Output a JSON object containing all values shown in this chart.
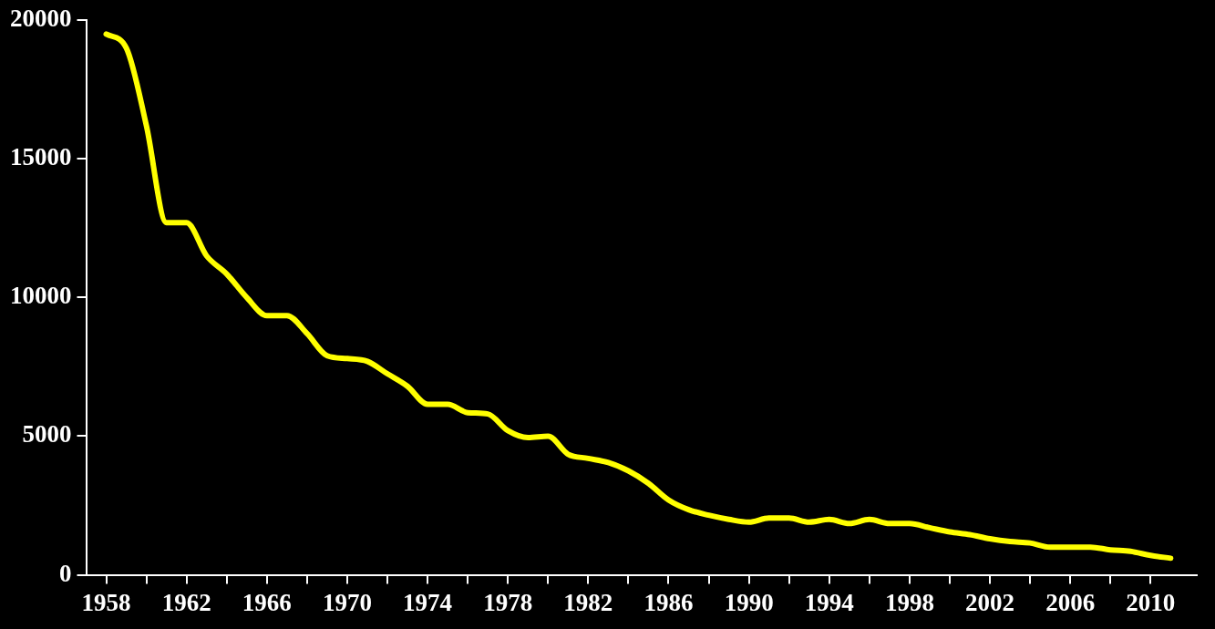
{
  "chart_data": {
    "type": "line",
    "x": [
      1958,
      1959,
      1960,
      1961,
      1962,
      1963,
      1964,
      1965,
      1966,
      1967,
      1968,
      1969,
      1970,
      1971,
      1972,
      1973,
      1974,
      1975,
      1976,
      1977,
      1978,
      1979,
      1980,
      1981,
      1982,
      1983,
      1984,
      1985,
      1986,
      1987,
      1988,
      1989,
      1990,
      1991,
      1992,
      1993,
      1994,
      1995,
      1996,
      1997,
      1998,
      1999,
      2000,
      2001,
      2002,
      2003,
      2004,
      2005,
      2006,
      2007,
      2008,
      2009,
      2010,
      2011
    ],
    "series": [
      {
        "color": "#ffff00",
        "values": [
          19500,
          19000,
          16200,
          12700,
          12700,
          11500,
          10850,
          10000,
          9350,
          9350,
          8700,
          7900,
          7800,
          7700,
          7250,
          6800,
          6150,
          6150,
          5850,
          5800,
          5200,
          4950,
          5000,
          4350,
          4200,
          4050,
          3750,
          3300,
          2700,
          2350,
          2150,
          2000,
          1900,
          2050,
          2050,
          1900,
          2000,
          1850,
          2000,
          1850,
          1850,
          1700,
          1550,
          1450,
          1300,
          1200,
          1150,
          1000,
          1000,
          1000,
          900,
          850,
          700,
          600
        ]
      }
    ],
    "xlim": [
      1957,
      2012.3
    ],
    "xticks": [
      1958,
      {
        "value": 1960,
        "label": null
      },
      1962,
      {
        "value": 1964,
        "label": null
      },
      1966,
      {
        "value": 1968,
        "label": null
      },
      1970,
      {
        "value": 1972,
        "label": null
      },
      1974,
      {
        "value": 1976,
        "label": null
      },
      1978,
      {
        "value": 1980,
        "label": null
      },
      1982,
      {
        "value": 1984,
        "label": null
      },
      1986,
      {
        "value": 1988,
        "label": null
      },
      1990,
      {
        "value": 1992,
        "label": null
      },
      1994,
      {
        "value": 1996,
        "label": null
      },
      1998,
      {
        "value": 2000,
        "label": null
      },
      2002,
      {
        "value": 2004,
        "label": null
      },
      2006,
      {
        "value": 2008,
        "label": null
      },
      2010
    ],
    "ylim": [
      0,
      20000
    ],
    "yticks": [
      0,
      5000,
      10000,
      15000,
      20000
    ],
    "grid": false,
    "legend": false,
    "marker": "none",
    "line_style": "solid"
  }
}
